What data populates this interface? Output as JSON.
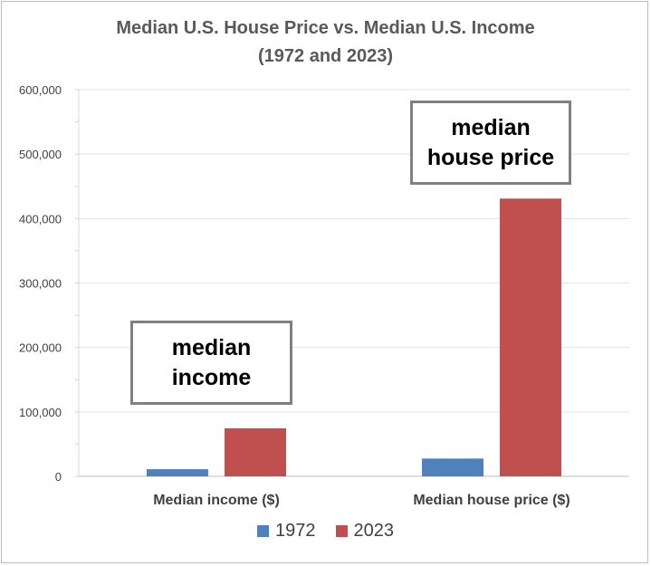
{
  "chart_data": {
    "type": "bar",
    "title": "Median U.S. House Price vs. Median U.S. Income",
    "subtitle": "(1972 and 2023)",
    "categories": [
      "Median income ($)",
      "Median house price ($)"
    ],
    "series": [
      {
        "name": "1972",
        "values": [
          11120,
          27600
        ],
        "color": "#4f81bd"
      },
      {
        "name": "2023",
        "values": [
          74580,
          431000
        ],
        "color": "#c0504d"
      }
    ],
    "ylim": [
      0,
      600000
    ],
    "yticks": [
      "0",
      "100,000",
      "200,000",
      "300,000",
      "400,000",
      "500,000",
      "600,000"
    ],
    "grid": true,
    "legend_position": "bottom",
    "annotations": [
      {
        "lines": [
          "median",
          "income"
        ]
      },
      {
        "lines": [
          "median",
          "house price"
        ]
      }
    ]
  }
}
